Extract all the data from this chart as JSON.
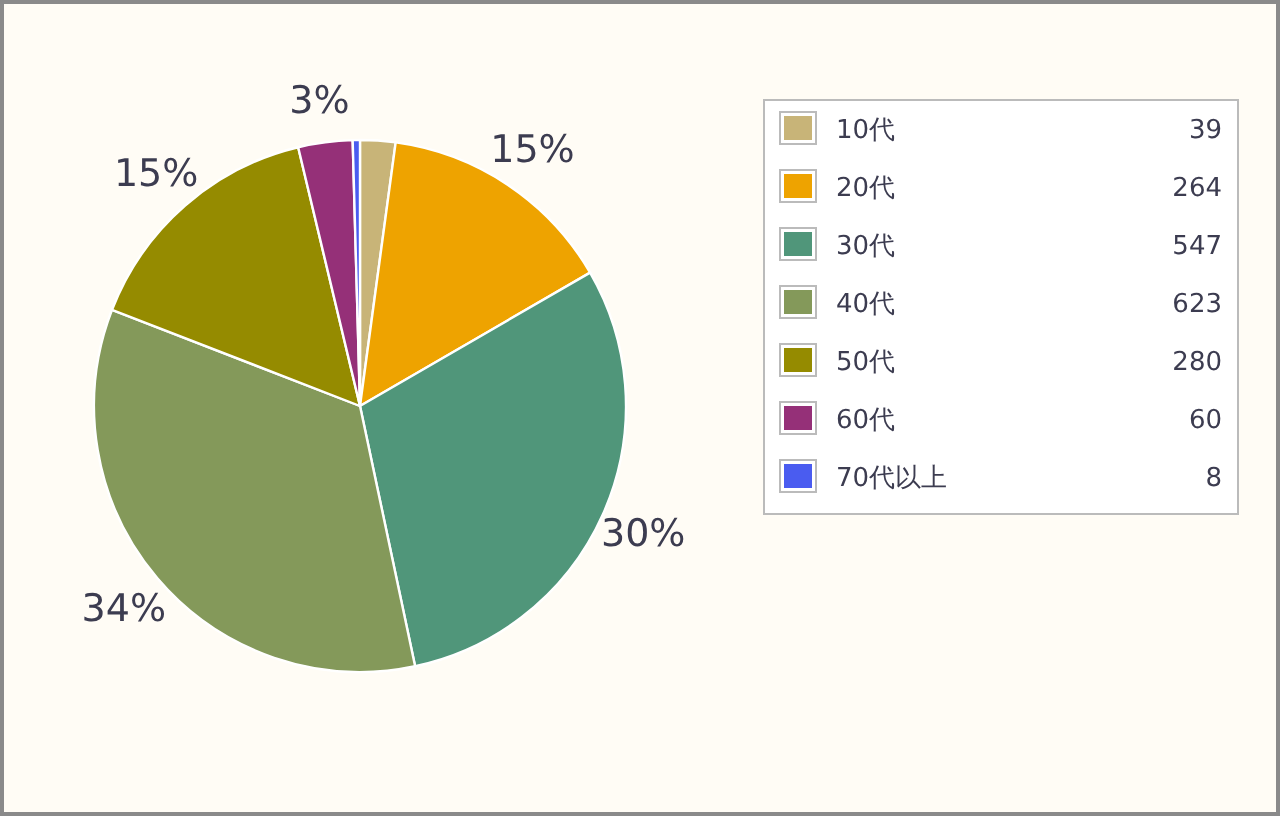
{
  "chart_data": {
    "type": "pie",
    "categories": [
      "10代",
      "20代",
      "30代",
      "40代",
      "50代",
      "60代",
      "70代以上"
    ],
    "values": [
      39,
      264,
      547,
      623,
      280,
      60,
      8
    ],
    "colors": [
      "#c8b478",
      "#eea300",
      "#50967a",
      "#84995a",
      "#958b00",
      "#953078",
      "#4a5cf0"
    ],
    "data_labels": true,
    "annotations": [
      {
        "text": "15%",
        "x": "20代"
      },
      {
        "text": "30%",
        "x": "30代"
      },
      {
        "text": "34%",
        "x": "40代"
      },
      {
        "text": "15%",
        "x": "50代"
      },
      {
        "text": "3%",
        "x": "60代"
      }
    ],
    "legend": "right"
  }
}
